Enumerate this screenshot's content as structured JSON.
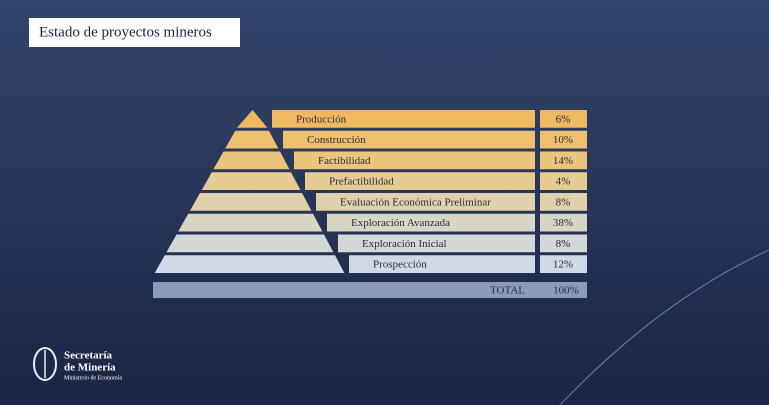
{
  "title": "Estado de proyectos mineros",
  "stages": [
    {
      "label": "Producción",
      "share": "6%"
    },
    {
      "label": "Construcción",
      "share": "10%"
    },
    {
      "label": "Factibilidad",
      "share": "14%"
    },
    {
      "label": "Prefactibilidad",
      "share": "4%"
    },
    {
      "label": "Evaluación Económica Preliminar",
      "share": "8%"
    },
    {
      "label": "Exploración Avanzada",
      "share": "38%"
    },
    {
      "label": "Exploración Inicial",
      "share": "8%"
    },
    {
      "label": "Prospección",
      "share": "12%"
    }
  ],
  "total": {
    "label": "TOTAL",
    "share": "100%"
  },
  "logo": {
    "line1": "Secretaría",
    "line2": "de Minería",
    "line3": "Ministerio de Economía"
  }
}
